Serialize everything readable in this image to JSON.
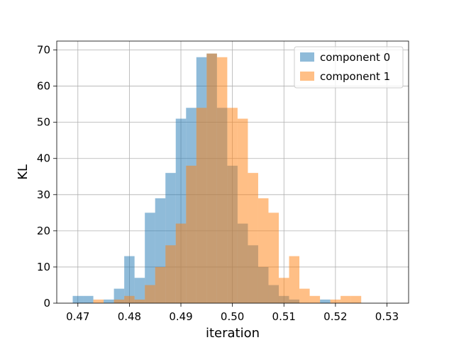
{
  "chart_data": {
    "type": "bar",
    "subtype": "histogram",
    "xlabel": "iteration",
    "ylabel": "KL",
    "xlim": [
      0.4659,
      0.5342
    ],
    "ylim": [
      0,
      72.45
    ],
    "xticks": [
      0.47,
      0.48,
      0.49,
      0.5,
      0.51,
      0.52,
      0.53
    ],
    "xtick_labels": [
      "0.47",
      "0.48",
      "0.49",
      "0.50",
      "0.51",
      "0.52",
      "0.53"
    ],
    "yticks": [
      0,
      10,
      20,
      30,
      40,
      50,
      60,
      70
    ],
    "ytick_labels": [
      "0",
      "10",
      "20",
      "30",
      "40",
      "50",
      "60",
      "70"
    ],
    "grid": true,
    "legend_position": "top-right",
    "series": [
      {
        "name": "component 0",
        "color": "#1f77b4",
        "alpha": 0.5,
        "bin_start": 0.469,
        "bin_width": 0.002,
        "counts": [
          2,
          2,
          0,
          1,
          4,
          13,
          7,
          25,
          29,
          36,
          51,
          54,
          68,
          69,
          54,
          38,
          22,
          16,
          10,
          5,
          2,
          1,
          0,
          0,
          1,
          0,
          0,
          0,
          0,
          0,
          0
        ]
      },
      {
        "name": "component 1",
        "color": "#ff7f0e",
        "alpha": 0.5,
        "bin_start": 0.469,
        "bin_width": 0.002,
        "counts": [
          0,
          0,
          1,
          0,
          1,
          2,
          1,
          5,
          10,
          16,
          22,
          38,
          54,
          69,
          68,
          54,
          51,
          36,
          29,
          25,
          7,
          13,
          4,
          2,
          0,
          1,
          2,
          2,
          0,
          0,
          0
        ]
      }
    ]
  }
}
